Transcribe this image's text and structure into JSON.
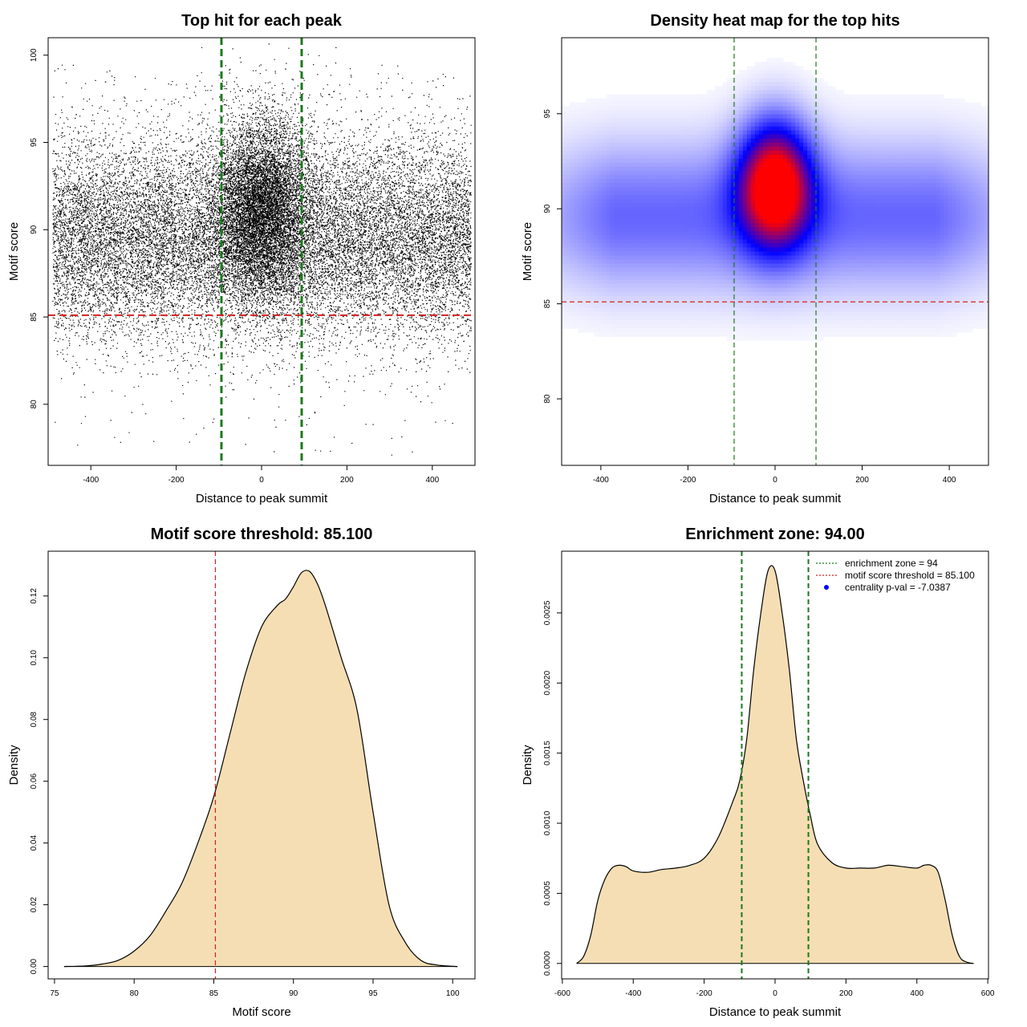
{
  "chart_data": [
    {
      "type": "scatter",
      "title": "Top hit for each peak",
      "xlabel": "Distance to peak summit",
      "ylabel": "Motif score",
      "xlim": [
        -500,
        500
      ],
      "ylim": [
        76.5,
        101
      ],
      "xticks": [
        -400,
        -200,
        0,
        200,
        400
      ],
      "yticks": [
        80,
        85,
        90,
        95,
        100
      ],
      "hlines": [
        {
          "y": 85.1,
          "color": "#d62020"
        }
      ],
      "vlines": [
        {
          "x": -94,
          "color": "#1a7a1a"
        },
        {
          "x": 94,
          "color": "#1a7a1a"
        }
      ],
      "points_description": "approx. 30000 points; x uniform in [-490, 490]; y ~ Normal(89.5, 2.9); extra mass near x = 0 with y ~ Normal(91.3, 2.6)"
    },
    {
      "type": "heatmap",
      "title": "Density heat map for the top hits",
      "xlabel": "Distance to peak summit",
      "ylabel": "Motif score",
      "xlim": [
        -490,
        490
      ],
      "ylim": [
        76.5,
        99
      ],
      "xticks": [
        -400,
        -200,
        0,
        200,
        400
      ],
      "yticks": [
        80,
        85,
        90,
        95
      ],
      "hlines": [
        {
          "y": 85.1,
          "color": "#d62020"
        }
      ],
      "vlines": [
        {
          "x": -94,
          "color": "#1a7a1a"
        },
        {
          "x": 94,
          "color": "#1a7a1a"
        }
      ],
      "peak": {
        "x": 0,
        "y": 91.3
      },
      "colors": [
        "#ffffff",
        "#0000ff",
        "#ff0000"
      ]
    },
    {
      "type": "area",
      "title": "Motif score threshold: 85.100",
      "xlabel": "Motif score",
      "ylabel": "Density",
      "xlim": [
        74.6,
        101.4
      ],
      "ylim": [
        -0.004,
        0.1345
      ],
      "xticks": [
        75,
        80,
        85,
        90,
        95,
        100
      ],
      "yticks": [
        0.0,
        0.02,
        0.04,
        0.06,
        0.08,
        0.1,
        0.12
      ],
      "ytick_labels": [
        "0.00",
        "0.02",
        "0.04",
        "0.06",
        "0.08",
        "0.10",
        "0.12"
      ],
      "x": [
        75.6,
        77,
        78,
        79,
        80,
        81,
        82,
        83,
        84,
        85,
        86,
        87,
        88,
        89,
        89.5,
        90,
        90.5,
        91,
        91.5,
        92,
        93,
        94,
        95,
        96,
        97,
        98,
        99,
        100.3
      ],
      "y": [
        0.0,
        0.0002,
        0.0008,
        0.002,
        0.005,
        0.01,
        0.018,
        0.027,
        0.04,
        0.055,
        0.075,
        0.095,
        0.11,
        0.117,
        0.119,
        0.123,
        0.1275,
        0.128,
        0.124,
        0.117,
        0.1,
        0.083,
        0.05,
        0.02,
        0.008,
        0.002,
        0.0005,
        0.0
      ],
      "fill": "#f5deb3",
      "vlines": [
        {
          "x": 85.1,
          "color": "#d62020"
        }
      ]
    },
    {
      "type": "area",
      "title": "Enrichment zone: 94.00",
      "xlabel": "Distance to peak summit",
      "ylabel": "Density",
      "xlim": [
        -602,
        602
      ],
      "ylim": [
        -0.00011,
        0.00294
      ],
      "xticks": [
        -600,
        -400,
        -200,
        0,
        200,
        400,
        600
      ],
      "yticks": [
        0.0,
        0.0005,
        0.001,
        0.0015,
        0.002,
        0.0025
      ],
      "ytick_labels": [
        "0.0000",
        "0.0005",
        "0.0010",
        "0.0015",
        "0.0020",
        "0.0025"
      ],
      "x": [
        -560,
        -540,
        -520,
        -500,
        -480,
        -460,
        -440,
        -420,
        -400,
        -360,
        -320,
        -280,
        -240,
        -200,
        -160,
        -120,
        -100,
        -80,
        -60,
        -40,
        -20,
        0,
        20,
        40,
        60,
        80,
        100,
        120,
        160,
        200,
        240,
        280,
        320,
        360,
        400,
        420,
        440,
        460,
        480,
        500,
        520,
        540,
        560
      ],
      "y": [
        0.0,
        5e-05,
        0.0002,
        0.00045,
        0.0006,
        0.00068,
        0.0007,
        0.00069,
        0.00066,
        0.00065,
        0.00067,
        0.00068,
        0.0007,
        0.00075,
        0.0009,
        0.00115,
        0.0013,
        0.0016,
        0.0021,
        0.0025,
        0.0028,
        0.0028,
        0.0025,
        0.0021,
        0.0016,
        0.0013,
        0.00105,
        0.00085,
        0.00072,
        0.00068,
        0.00068,
        0.00068,
        0.0007,
        0.00069,
        0.00068,
        0.0007,
        0.0007,
        0.00065,
        0.00045,
        0.0002,
        5e-05,
        1e-05,
        0.0
      ],
      "fill": "#f5deb3",
      "vlines": [
        {
          "x": -94,
          "color": "#1a7a1a"
        },
        {
          "x": 94,
          "color": "#1a7a1a"
        }
      ],
      "legend": {
        "position": "top-right",
        "entries": [
          {
            "label": "enrichment zone = 94",
            "color": "#1a7a1a",
            "style": "dotted"
          },
          {
            "label": "motif score threshold = 85.100",
            "color": "#d62020",
            "style": "dotted"
          },
          {
            "label": "centrality p-val = -7.0387",
            "color": "#0000ff",
            "style": "point"
          }
        ]
      }
    }
  ]
}
